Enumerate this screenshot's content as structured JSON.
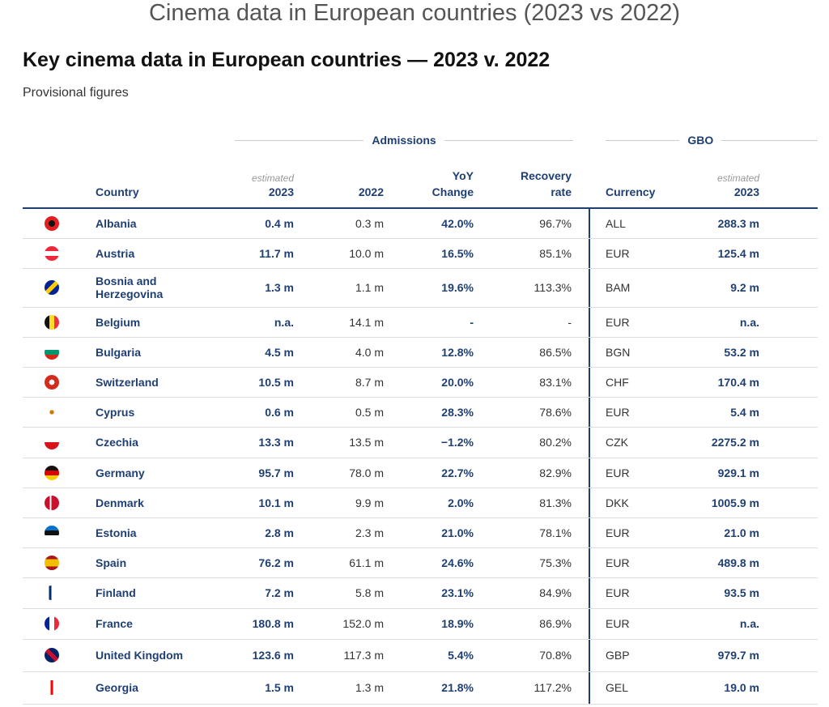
{
  "header": {
    "title": "Cinema data in European countries (2023 vs 2022)",
    "heading": "Key cinema data in European countries — 2023 v. 2022",
    "subtitle": "Provisional figures"
  },
  "table": {
    "groups": [
      "Admissions",
      "GBO"
    ],
    "columns": [
      {
        "label": "Country"
      },
      {
        "note": "estimated",
        "label": "2023"
      },
      {
        "label": "2022"
      },
      {
        "label": "YoY Change"
      },
      {
        "label": "Recovery rate"
      },
      {
        "label": "Currency"
      },
      {
        "note": "estimated",
        "label": "2023"
      }
    ],
    "rows": [
      [
        "Albania",
        "0.4 m",
        "0.3 m",
        "42.0%",
        "96.7%",
        "ALL",
        "288.3 m"
      ],
      [
        "Austria",
        "11.7 m",
        "10.0 m",
        "16.5%",
        "85.1%",
        "EUR",
        "125.4 m"
      ],
      [
        "Bosnia and Herzegovina",
        "1.3 m",
        "1.1 m",
        "19.6%",
        "113.3%",
        "BAM",
        "9.2 m"
      ],
      [
        "Belgium",
        "n.a.",
        "14.1 m",
        "-",
        "-",
        "EUR",
        "n.a."
      ],
      [
        "Bulgaria",
        "4.5 m",
        "4.0 m",
        "12.8%",
        "86.5%",
        "BGN",
        "53.2 m"
      ],
      [
        "Switzerland",
        "10.5 m",
        "8.7 m",
        "20.0%",
        "83.1%",
        "CHF",
        "170.4 m"
      ],
      [
        "Cyprus",
        "0.6 m",
        "0.5 m",
        "28.3%",
        "78.6%",
        "EUR",
        "5.4 m"
      ],
      [
        "Czechia",
        "13.3 m",
        "13.5 m",
        "−1.2%",
        "80.2%",
        "CZK",
        "2275.2 m"
      ],
      [
        "Germany",
        "95.7 m",
        "78.0 m",
        "22.7%",
        "82.9%",
        "EUR",
        "929.1 m"
      ],
      [
        "Denmark",
        "10.1 m",
        "9.9 m",
        "2.0%",
        "81.3%",
        "DKK",
        "1005.9 m"
      ],
      [
        "Estonia",
        "2.8 m",
        "2.3 m",
        "21.0%",
        "78.1%",
        "EUR",
        "21.0 m"
      ],
      [
        "Spain",
        "76.2 m",
        "61.1 m",
        "24.6%",
        "75.3%",
        "EUR",
        "489.8 m"
      ],
      [
        "Finland",
        "7.2 m",
        "5.8 m",
        "23.1%",
        "84.9%",
        "EUR",
        "93.5 m"
      ],
      [
        "France",
        "180.8 m",
        "152.0 m",
        "18.9%",
        "86.9%",
        "EUR",
        "n.a."
      ],
      [
        "United Kingdom",
        "123.6 m",
        "117.3 m",
        "5.4%",
        "70.8%",
        "GBP",
        "979.7 m"
      ],
      [
        "Georgia",
        "1.5 m",
        "1.3 m",
        "21.8%",
        "117.2%",
        "GEL",
        "19.0 m"
      ]
    ]
  }
}
